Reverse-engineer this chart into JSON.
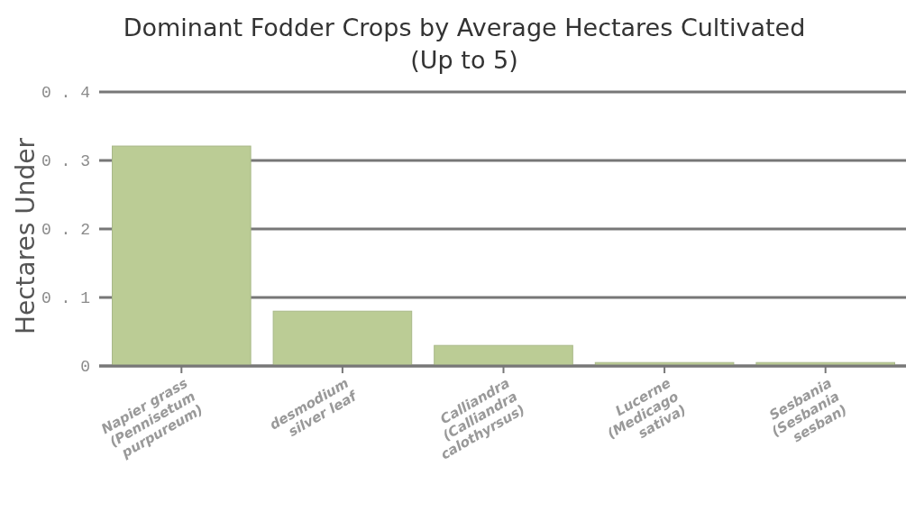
{
  "chart_data": {
    "type": "bar",
    "title": "Dominant Fodder Crops by Average Hectares Cultivated",
    "subtitle": "(Up to 5)",
    "ylabel": "Hectares Under",
    "categories": [
      "Napier grass (Pennisetum purpureum)",
      "desmodium silver leaf",
      "Calliandra (Calliandra calothyrsus)",
      "Lucerne (Medicago sativa)",
      "Sesbania (Sesbania sesban)"
    ],
    "values": [
      0.321,
      0.08,
      0.03,
      0.005,
      0.005
    ],
    "color": "#bbcc95",
    "ylim": [
      0,
      0.4
    ],
    "yticks": [
      0,
      0.1,
      0.2,
      0.3,
      0.4
    ],
    "grid": "y"
  }
}
